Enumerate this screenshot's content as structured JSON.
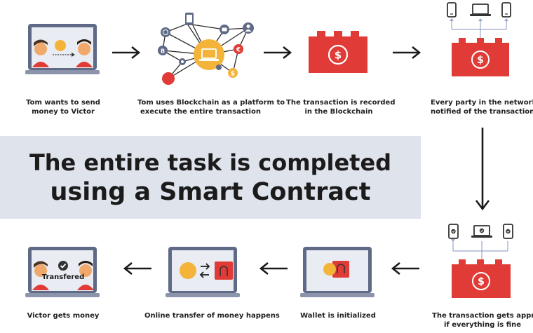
{
  "steps": {
    "send": {
      "line1": "Tom wants to send",
      "line2": "money to Victor"
    },
    "platform": {
      "line1": "Tom uses Blockchain as a platform to",
      "line2": "execute the entire transaction"
    },
    "recorded": {
      "line1": "The transaction is recorded",
      "line2": "in the Blockchain"
    },
    "notified": {
      "line1": "Every party in the network is",
      "line2": "notified of the transaction"
    },
    "approved": {
      "line1": "The transaction gets approved",
      "line2": "if everything is fine"
    },
    "wallet": {
      "label": "Wallet is initialized"
    },
    "transfer": {
      "label": "Online transfer of money happens"
    },
    "victor": {
      "label": "Victor gets money",
      "badge": "Transfered"
    }
  },
  "banner": {
    "line1": "The entire task is completed",
    "line2": "using a Smart Contract"
  },
  "icons": {
    "dollar": "$",
    "euro": "€",
    "bitcoin": "B"
  },
  "colors": {
    "red": "#e03b36",
    "orange": "#f4b43a",
    "laptop": "#5f6a86",
    "screen": "#e9ecf3",
    "connector": "#9aa6c6",
    "arrow": "#1a1a1a",
    "banner": "#dfe3ec"
  }
}
